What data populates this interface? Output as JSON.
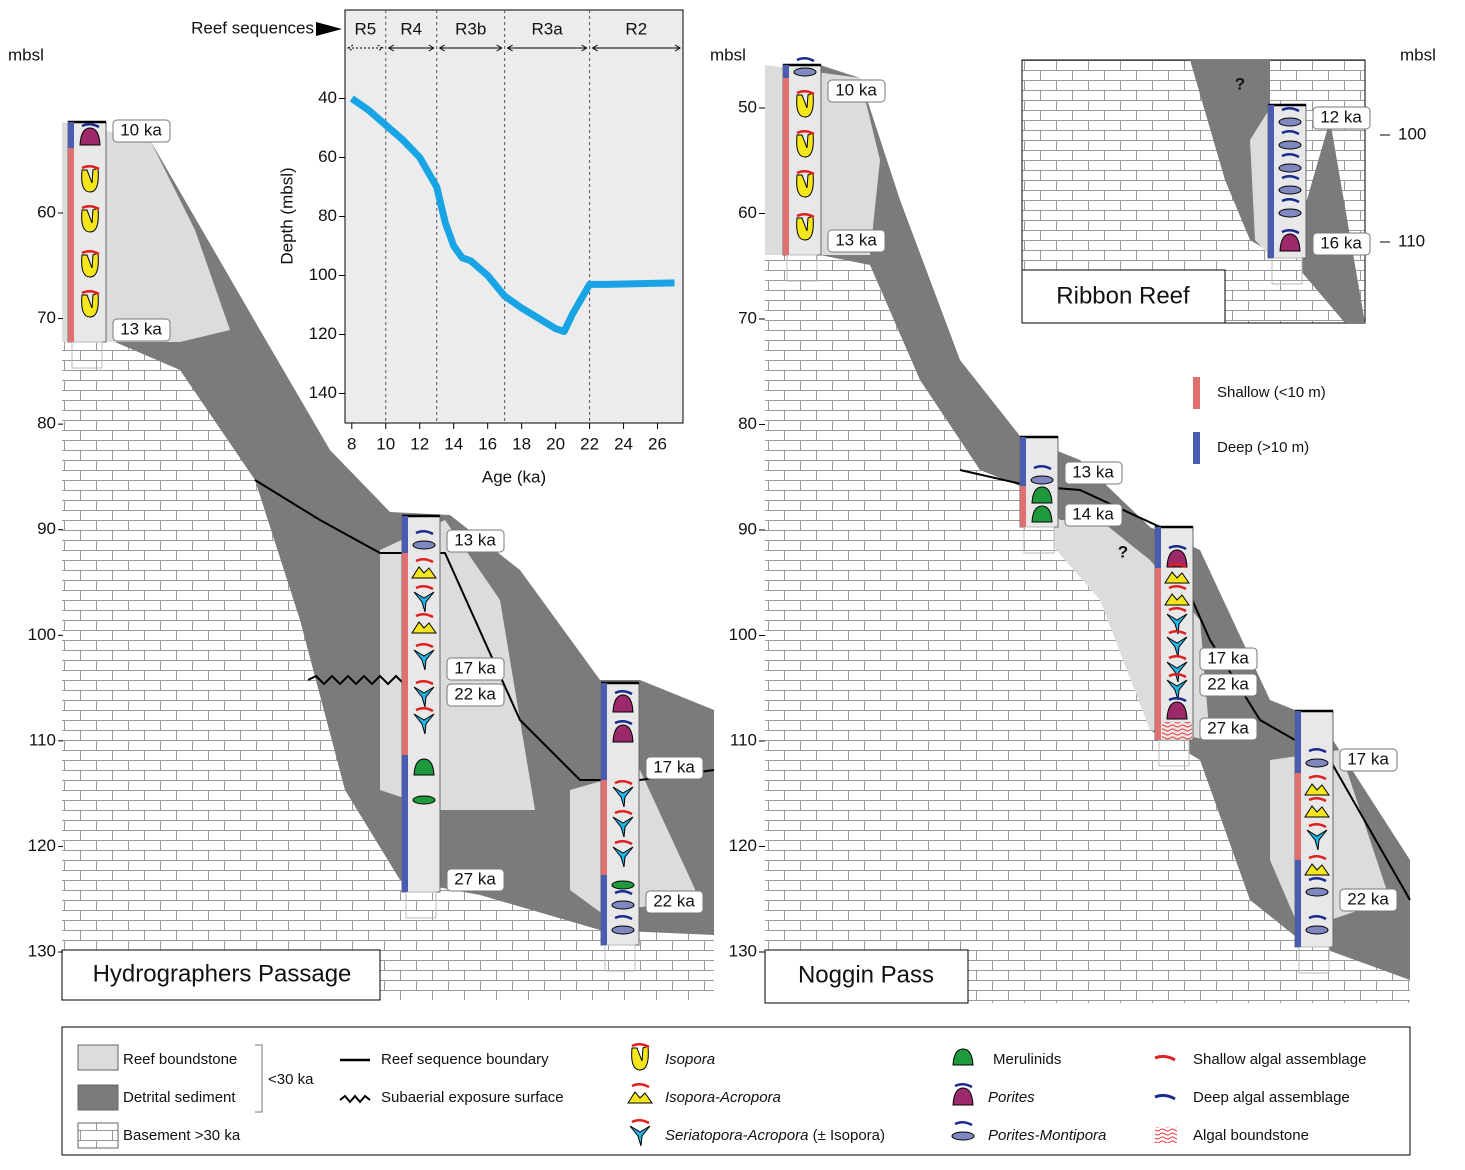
{
  "chart_data": {
    "type": "line",
    "xlabel": "Age (ka)",
    "ylabel": "Depth (mbsl)",
    "x": [
      8,
      9,
      10,
      11,
      12,
      13,
      13.5,
      14,
      14.5,
      15,
      16,
      17,
      18,
      20,
      20.5,
      21,
      22,
      23,
      27
    ],
    "series": [
      {
        "color": "#19a4e6",
        "values": [
          40,
          44,
          49,
          54,
          60,
          70,
          82,
          90,
          94,
          95,
          100,
          107,
          111,
          118,
          119,
          113,
          103,
          103,
          102.5
        ]
      }
    ],
    "xlim": [
      7.6,
      27.5
    ],
    "ylim": [
      150,
      10
    ],
    "xticks": [
      8,
      10,
      12,
      14,
      16,
      18,
      20,
      22,
      24,
      26
    ],
    "yticks": [
      40,
      60,
      80,
      100,
      120,
      140
    ],
    "sequences": {
      "label": "Reef sequences",
      "names": [
        "R5",
        "R4",
        "R3b",
        "R3a",
        "R2"
      ],
      "boundaries": [
        10,
        13,
        17,
        22
      ]
    }
  },
  "panels": [
    {
      "title": "Hydrographers Passage",
      "axis_label": "mbsl",
      "yticks": [
        60,
        70,
        80,
        90,
        100,
        110,
        120,
        130
      ],
      "ages": [
        "10 ka",
        "13 ka",
        "13 ka",
        "17 ka",
        "22 ka",
        "27 ka",
        "17 ka",
        "22 ka"
      ]
    },
    {
      "title": "Noggin Pass",
      "axis_label": "mbsl",
      "yticks": [
        50,
        60,
        70,
        80,
        90,
        100,
        110,
        120,
        130
      ],
      "ages": [
        "10 ka",
        "13 ka",
        "13 ka",
        "14 ka",
        "17 ka",
        "22 ka",
        "27 ka",
        "17 ka",
        "22 ka"
      ],
      "note": "?"
    },
    {
      "title": "Ribbon Reef",
      "axis_label": "mbsl",
      "yticks": [
        100,
        110
      ],
      "ages": [
        "12 ka",
        "16 ka"
      ],
      "note": "?"
    }
  ],
  "depth_legend": [
    "Shallow (<10 m)",
    "Deep (>10 m)"
  ],
  "legend": {
    "reef": "Reef boundstone",
    "detrital": "Detrital sediment",
    "age_range": "<30 ka",
    "basement": "Basement >30 ka",
    "boundary": "Reef sequence boundary",
    "exposure": "Subaerial exposure surface",
    "isopora": "Isopora",
    "isopora_acropora": "Isopora-Acropora",
    "seriatopora": "Seriatopora-Acropora",
    "seriatopora_note": "(± Isopora)",
    "merulinids": "Merulinids",
    "porites": "Porites",
    "porites_montipora": "Porites-Montipora",
    "shallow_algal": "Shallow algal assemblage",
    "deep_algal": "Deep algal assemblage",
    "algal_boundstone": "Algal boundstone"
  }
}
